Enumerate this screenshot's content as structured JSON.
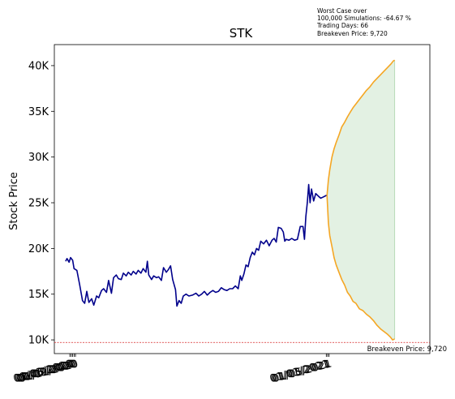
{
  "chart_data": {
    "type": "line",
    "title": "STK",
    "ylabel": "Stock Price",
    "xlabel": "",
    "annotation_lines": [
      "Worst Case over",
      "100,000 Simulations: -64.67 %",
      "Trading Days: 66",
      "Breakeven Price: 9,720"
    ],
    "breakeven": {
      "value": 9720,
      "label": "Breakeven Price: 9,720",
      "color": "#d62728"
    },
    "ylim": [
      8500,
      42300
    ],
    "xlim": [
      "2019-12-12",
      "2021-05-28"
    ],
    "y_ticks": [
      {
        "value": 10000,
        "label": "10K"
      },
      {
        "value": 15000,
        "label": "15K"
      },
      {
        "value": 20000,
        "label": "20K"
      },
      {
        "value": 25000,
        "label": "25K"
      },
      {
        "value": 30000,
        "label": "30K"
      },
      {
        "value": 35000,
        "label": "35K"
      },
      {
        "value": 40000,
        "label": "40K"
      }
    ],
    "x_ticks": [
      {
        "value": "2020-01-03",
        "label": "01/03/2020"
      },
      {
        "value": "2020-01-05",
        "label": "01/05/2020"
      },
      {
        "value": "2020-01-07",
        "label": "01/07/2020"
      },
      {
        "value": "2020-01-09",
        "label": "01/09/2020"
      },
      {
        "value": "2020-01-11",
        "label": "01/11/2020"
      },
      {
        "value": "2021-01-01",
        "label": "01/01/2021"
      },
      {
        "value": "2021-01-03",
        "label": "01/03/2021"
      },
      {
        "value": "2021-01-05",
        "label": "01/05/2021"
      }
    ],
    "history_color": "#00008b",
    "bound_color": "#f5a623",
    "fill_color": "#e3f1e3",
    "history": [
      [
        "2019-12-28",
        18600
      ],
      [
        "2019-12-30",
        18900
      ],
      [
        "2020-01-02",
        18500
      ],
      [
        "2020-01-04",
        19000
      ],
      [
        "2020-01-07",
        18700
      ],
      [
        "2020-01-09",
        17800
      ],
      [
        "2020-01-13",
        17600
      ],
      [
        "2020-01-17",
        16000
      ],
      [
        "2020-01-21",
        14300
      ],
      [
        "2020-01-24",
        14000
      ],
      [
        "2020-01-27",
        15300
      ],
      [
        "2020-01-30",
        14100
      ],
      [
        "2020-02-03",
        14500
      ],
      [
        "2020-02-06",
        13800
      ],
      [
        "2020-02-10",
        14800
      ],
      [
        "2020-02-13",
        14600
      ],
      [
        "2020-02-17",
        15400
      ],
      [
        "2020-02-20",
        15600
      ],
      [
        "2020-02-24",
        15200
      ],
      [
        "2020-02-27",
        16500
      ],
      [
        "2020-03-02",
        15100
      ],
      [
        "2020-03-05",
        16800
      ],
      [
        "2020-03-09",
        17100
      ],
      [
        "2020-03-12",
        16700
      ],
      [
        "2020-03-16",
        16600
      ],
      [
        "2020-03-19",
        17300
      ],
      [
        "2020-03-23",
        17000
      ],
      [
        "2020-03-26",
        17400
      ],
      [
        "2020-03-30",
        17100
      ],
      [
        "2020-04-02",
        17500
      ],
      [
        "2020-04-06",
        17200
      ],
      [
        "2020-04-09",
        17600
      ],
      [
        "2020-04-13",
        17300
      ],
      [
        "2020-04-16",
        17800
      ],
      [
        "2020-04-20",
        17400
      ],
      [
        "2020-04-22",
        18600
      ],
      [
        "2020-04-24",
        17100
      ],
      [
        "2020-04-28",
        16600
      ],
      [
        "2020-05-01",
        17000
      ],
      [
        "2020-05-05",
        16800
      ],
      [
        "2020-05-08",
        16900
      ],
      [
        "2020-05-12",
        16500
      ],
      [
        "2020-05-15",
        17900
      ],
      [
        "2020-05-19",
        17400
      ],
      [
        "2020-05-22",
        17700
      ],
      [
        "2020-05-25",
        18100
      ],
      [
        "2020-05-28",
        16600
      ],
      [
        "2020-06-01",
        15500
      ],
      [
        "2020-06-03",
        13700
      ],
      [
        "2020-06-06",
        14300
      ],
      [
        "2020-06-09",
        14000
      ],
      [
        "2020-06-12",
        14800
      ],
      [
        "2020-06-16",
        15000
      ],
      [
        "2020-06-20",
        14800
      ],
      [
        "2020-06-25",
        14900
      ],
      [
        "2020-06-30",
        15100
      ],
      [
        "2020-07-04",
        14800
      ],
      [
        "2020-07-08",
        15000
      ],
      [
        "2020-07-12",
        15300
      ],
      [
        "2020-07-16",
        14900
      ],
      [
        "2020-07-20",
        15200
      ],
      [
        "2020-07-24",
        15400
      ],
      [
        "2020-07-28",
        15200
      ],
      [
        "2020-08-01",
        15300
      ],
      [
        "2020-08-05",
        15700
      ],
      [
        "2020-08-09",
        15500
      ],
      [
        "2020-08-13",
        15400
      ],
      [
        "2020-08-17",
        15600
      ],
      [
        "2020-08-21",
        15600
      ],
      [
        "2020-08-25",
        15900
      ],
      [
        "2020-08-29",
        15600
      ],
      [
        "2020-09-01",
        17000
      ],
      [
        "2020-09-03",
        16500
      ],
      [
        "2020-09-06",
        17200
      ],
      [
        "2020-09-09",
        18200
      ],
      [
        "2020-09-12",
        18000
      ],
      [
        "2020-09-15",
        19000
      ],
      [
        "2020-09-18",
        19600
      ],
      [
        "2020-09-21",
        19300
      ],
      [
        "2020-09-24",
        20000
      ],
      [
        "2020-09-27",
        19800
      ],
      [
        "2020-09-30",
        20800
      ],
      [
        "2020-10-04",
        20500
      ],
      [
        "2020-10-08",
        20900
      ],
      [
        "2020-10-12",
        20300
      ],
      [
        "2020-10-16",
        20900
      ],
      [
        "2020-10-19",
        21100
      ],
      [
        "2020-10-22",
        20700
      ],
      [
        "2020-10-25",
        22300
      ],
      [
        "2020-10-29",
        22200
      ],
      [
        "2020-11-01",
        21800
      ],
      [
        "2020-11-03",
        20800
      ],
      [
        "2020-11-05",
        21000
      ],
      [
        "2020-11-09",
        20900
      ],
      [
        "2020-11-13",
        21100
      ],
      [
        "2020-11-17",
        20900
      ],
      [
        "2020-11-21",
        21000
      ],
      [
        "2020-11-25",
        22400
      ],
      [
        "2020-11-29",
        22400
      ],
      [
        "2020-12-01",
        21000
      ],
      [
        "2020-12-03",
        23500
      ],
      [
        "2020-12-05",
        25000
      ],
      [
        "2020-12-07",
        27000
      ],
      [
        "2020-12-09",
        25000
      ],
      [
        "2020-12-11",
        26500
      ],
      [
        "2020-12-14",
        25200
      ],
      [
        "2020-12-17",
        26000
      ],
      [
        "2020-12-21",
        25700
      ],
      [
        "2020-12-24",
        25500
      ],
      [
        "2020-12-27",
        25600
      ],
      [
        "2021-01-01",
        25800
      ],
      [
        "2021-01-02",
        25800
      ]
    ],
    "upper_bound": [
      [
        "2021-01-02",
        25800
      ],
      [
        "2021-01-04",
        27500
      ],
      [
        "2021-01-06",
        28600
      ],
      [
        "2021-01-09",
        30000
      ],
      [
        "2021-01-12",
        30900
      ],
      [
        "2021-01-15",
        31600
      ],
      [
        "2021-01-19",
        32400
      ],
      [
        "2021-01-23",
        33300
      ],
      [
        "2021-01-27",
        33800
      ],
      [
        "2021-01-31",
        34400
      ],
      [
        "2021-02-04",
        34900
      ],
      [
        "2021-02-08",
        35400
      ],
      [
        "2021-02-12",
        35800
      ],
      [
        "2021-02-17",
        36300
      ],
      [
        "2021-02-22",
        36800
      ],
      [
        "2021-02-27",
        37300
      ],
      [
        "2021-03-04",
        37700
      ],
      [
        "2021-03-09",
        38200
      ],
      [
        "2021-03-14",
        38600
      ],
      [
        "2021-03-19",
        39000
      ],
      [
        "2021-03-24",
        39400
      ],
      [
        "2021-03-29",
        39800
      ],
      [
        "2021-04-03",
        40200
      ],
      [
        "2021-04-06",
        40500
      ],
      [
        "2021-04-08",
        40600
      ]
    ],
    "lower_bound": [
      [
        "2021-01-02",
        25800
      ],
      [
        "2021-01-04",
        22800
      ],
      [
        "2021-01-06",
        21400
      ],
      [
        "2021-01-09",
        20200
      ],
      [
        "2021-01-12",
        19000
      ],
      [
        "2021-01-15",
        18200
      ],
      [
        "2021-01-19",
        17400
      ],
      [
        "2021-01-23",
        16600
      ],
      [
        "2021-01-27",
        16000
      ],
      [
        "2021-01-31",
        15200
      ],
      [
        "2021-02-04",
        14800
      ],
      [
        "2021-02-08",
        14200
      ],
      [
        "2021-02-12",
        14000
      ],
      [
        "2021-02-17",
        13400
      ],
      [
        "2021-02-22",
        13200
      ],
      [
        "2021-02-27",
        12800
      ],
      [
        "2021-03-04",
        12500
      ],
      [
        "2021-03-09",
        12100
      ],
      [
        "2021-03-14",
        11600
      ],
      [
        "2021-03-19",
        11200
      ],
      [
        "2021-03-24",
        10900
      ],
      [
        "2021-03-29",
        10600
      ],
      [
        "2021-04-02",
        10300
      ],
      [
        "2021-04-05",
        10000
      ],
      [
        "2021-04-08",
        10100
      ]
    ]
  }
}
